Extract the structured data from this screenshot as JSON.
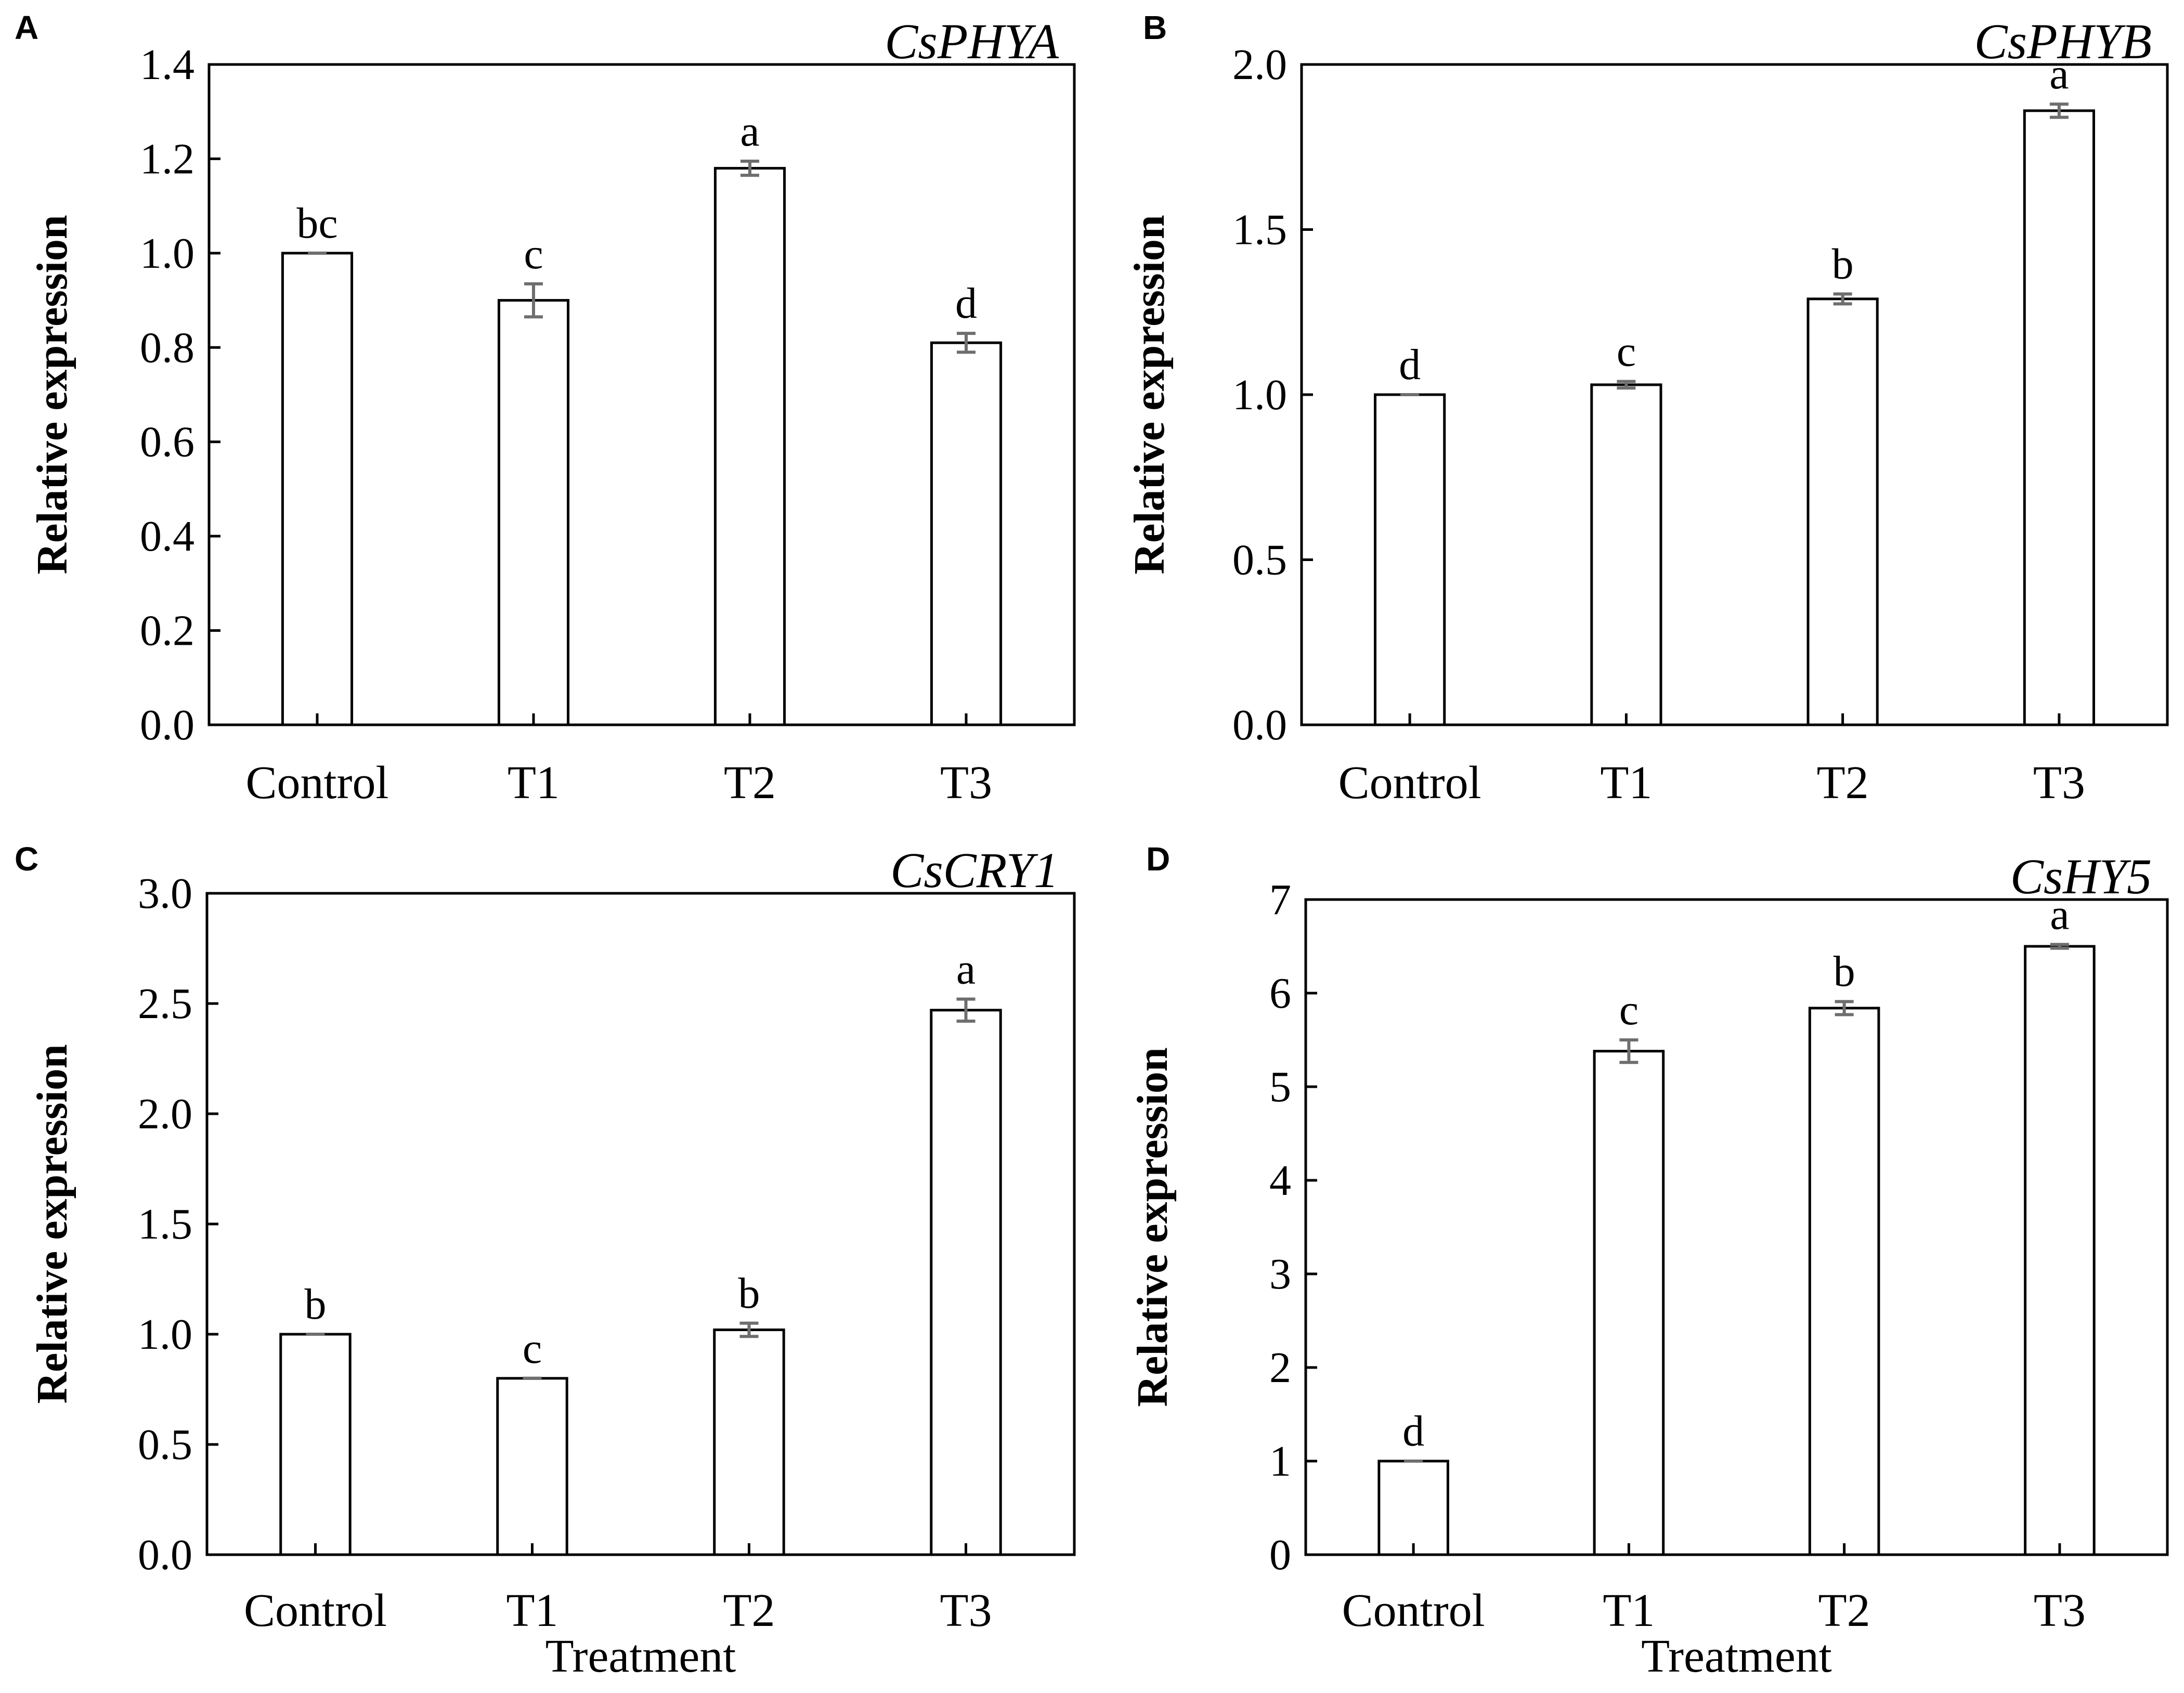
{
  "chart_data": [
    {
      "type": "bar",
      "panel": "A",
      "title": "CsPHYA",
      "categories": [
        "Control",
        "T1",
        "T2",
        "T3"
      ],
      "values": [
        1.0,
        0.9,
        1.18,
        0.81
      ],
      "errors": [
        0.0,
        0.035,
        0.015,
        0.02
      ],
      "significance": [
        "bc",
        "c",
        "a",
        "d"
      ],
      "ylabel": "Relative expression",
      "xlabel": "",
      "ylim": [
        0,
        1.4
      ],
      "yticks": [
        0.0,
        0.2,
        0.4,
        0.6,
        0.8,
        1.0,
        1.2,
        1.4
      ],
      "ytick_labels": [
        "0.0",
        "0.2",
        "0.4",
        "0.6",
        "0.8",
        "1.0",
        "1.2",
        "1.4"
      ],
      "grid": false
    },
    {
      "type": "bar",
      "panel": "B",
      "title": "CsPHYB",
      "categories": [
        "Control",
        "T1",
        "T2",
        "T3"
      ],
      "values": [
        1.0,
        1.03,
        1.29,
        1.86
      ],
      "errors": [
        0.0,
        0.01,
        0.015,
        0.02
      ],
      "significance": [
        "d",
        "c",
        "b",
        "a"
      ],
      "ylabel": "Relative expression",
      "xlabel": "",
      "ylim": [
        0,
        2.0
      ],
      "yticks": [
        0.0,
        0.5,
        1.0,
        1.5,
        2.0
      ],
      "ytick_labels": [
        "0.0",
        "0.5",
        "1.0",
        "1.5",
        "2.0"
      ],
      "grid": false
    },
    {
      "type": "bar",
      "panel": "C",
      "title": "CsCRY1",
      "categories": [
        "Control",
        "T1",
        "T2",
        "T3"
      ],
      "values": [
        1.0,
        0.8,
        1.02,
        2.47
      ],
      "errors": [
        0.0,
        0.0,
        0.03,
        0.05
      ],
      "significance": [
        "b",
        "c",
        "b",
        "a"
      ],
      "ylabel": "Relative expression",
      "xlabel": "Treatment",
      "ylim": [
        0,
        3.0
      ],
      "yticks": [
        0.0,
        0.5,
        1.0,
        1.5,
        2.0,
        2.5,
        3.0
      ],
      "ytick_labels": [
        "0.0",
        "0.5",
        "1.0",
        "1.5",
        "2.0",
        "2.5",
        "3.0"
      ],
      "grid": false
    },
    {
      "type": "bar",
      "panel": "D",
      "title": "CsHY5",
      "categories": [
        "Control",
        "T1",
        "T2",
        "T3"
      ],
      "values": [
        1.0,
        5.38,
        5.84,
        6.5
      ],
      "errors": [
        0.0,
        0.12,
        0.07,
        0.02
      ],
      "significance": [
        "d",
        "c",
        "b",
        "a"
      ],
      "ylabel": "Relative expression",
      "xlabel": "Treatment",
      "ylim": [
        0,
        7
      ],
      "yticks": [
        0,
        1,
        2,
        3,
        4,
        5,
        6,
        7
      ],
      "ytick_labels": [
        "0",
        "1",
        "2",
        "3",
        "4",
        "5",
        "6",
        "7"
      ],
      "grid": false
    }
  ],
  "colors": {
    "bar_fill": "#ffffff",
    "bar_stroke": "#000000",
    "axis": "#000000",
    "error_bar": "#6e6e6e"
  }
}
